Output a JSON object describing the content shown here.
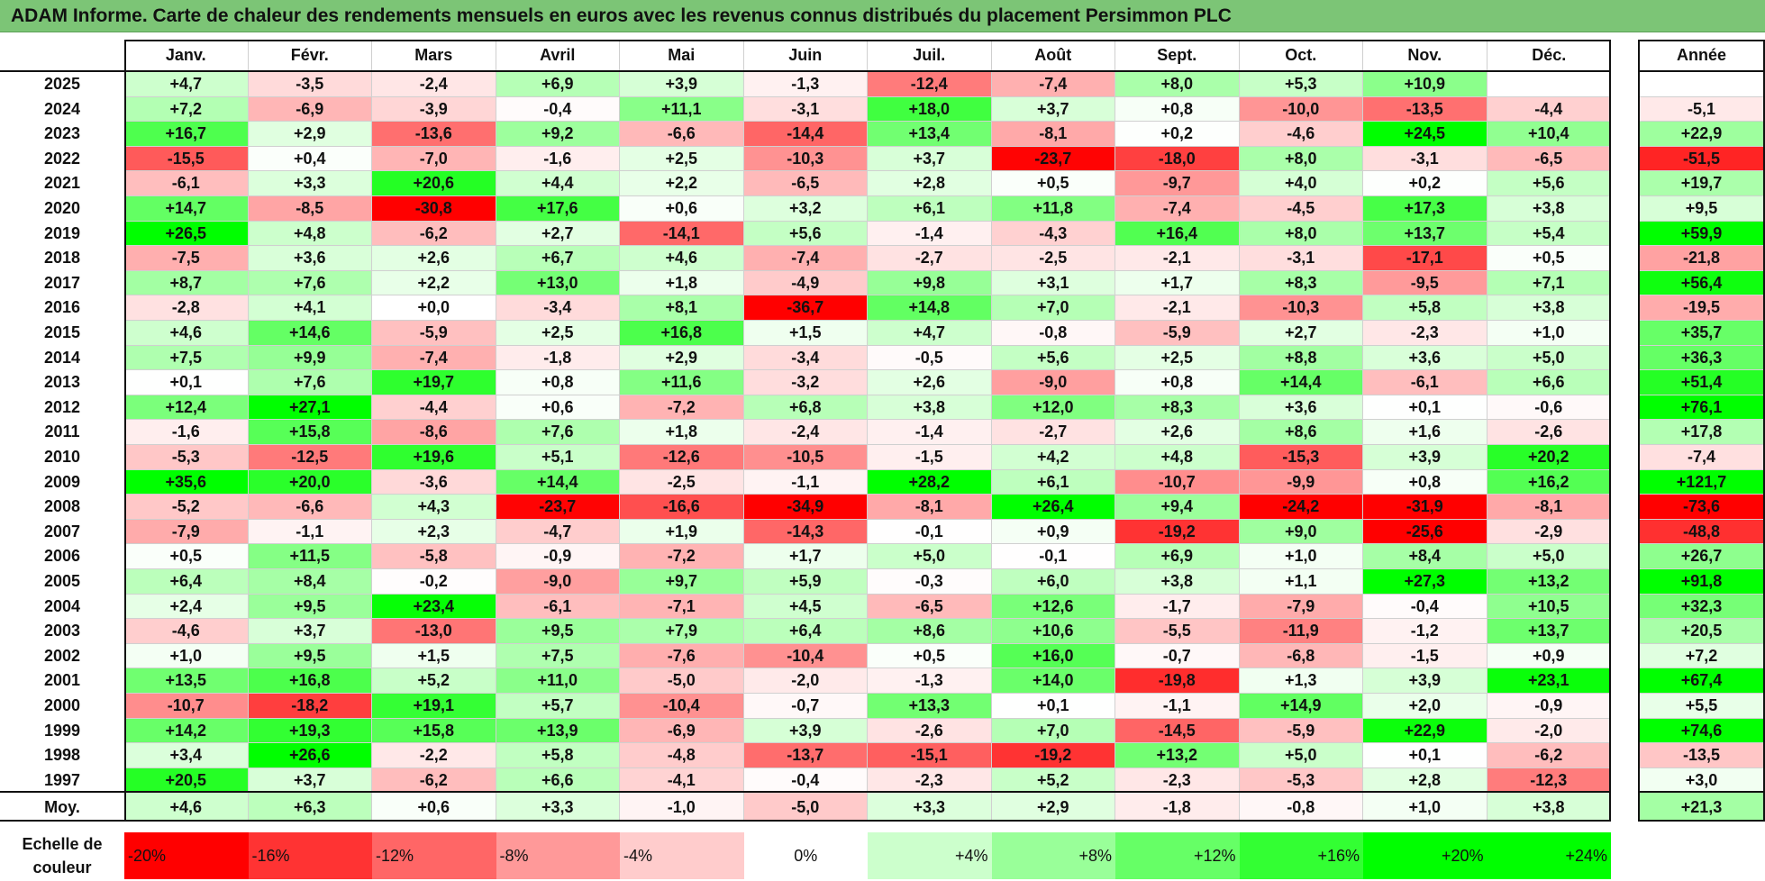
{
  "title": "ADAM Informe. Carte de chaleur des rendements mensuels en euros avec les revenus connus distribués du placement Persimmon PLC",
  "colors": {
    "title_bg": "#7cc576",
    "max_red": "#ff0000",
    "max_green": "#00ff00",
    "neutral": "#ffffff"
  },
  "chart_data": {
    "type": "heatmap",
    "months": [
      "Janv.",
      "Févr.",
      "Mars",
      "Avril",
      "Mai",
      "Juin",
      "Juil.",
      "Août",
      "Sept.",
      "Oct.",
      "Nov.",
      "Déc."
    ],
    "year_col_label": "Année",
    "rows": [
      {
        "year": "2025",
        "values": [
          "+4,7",
          "-3,5",
          "-2,4",
          "+6,9",
          "+3,9",
          "-1,3",
          "-12,4",
          "-7,4",
          "+8,0",
          "+5,3",
          "+10,9",
          ""
        ],
        "annual": ""
      },
      {
        "year": "2024",
        "values": [
          "+7,2",
          "-6,9",
          "-3,9",
          "-0,4",
          "+11,1",
          "-3,1",
          "+18,0",
          "+3,7",
          "+0,8",
          "-10,0",
          "-13,5",
          "-4,4"
        ],
        "annual": "-5,1"
      },
      {
        "year": "2023",
        "values": [
          "+16,7",
          "+2,9",
          "-13,6",
          "+9,2",
          "-6,6",
          "-14,4",
          "+13,4",
          "-8,1",
          "+0,2",
          "-4,6",
          "+24,5",
          "+10,4"
        ],
        "annual": "+22,9"
      },
      {
        "year": "2022",
        "values": [
          "-15,5",
          "+0,4",
          "-7,0",
          "-1,6",
          "+2,5",
          "-10,3",
          "+3,7",
          "-23,7",
          "-18,0",
          "+8,0",
          "-3,1",
          "-6,5"
        ],
        "annual": "-51,5"
      },
      {
        "year": "2021",
        "values": [
          "-6,1",
          "+3,3",
          "+20,6",
          "+4,4",
          "+2,2",
          "-6,5",
          "+2,8",
          "+0,5",
          "-9,7",
          "+4,0",
          "+0,2",
          "+5,6"
        ],
        "annual": "+19,7"
      },
      {
        "year": "2020",
        "values": [
          "+14,7",
          "-8,5",
          "-30,8",
          "+17,6",
          "+0,6",
          "+3,2",
          "+6,1",
          "+11,8",
          "-7,4",
          "-4,5",
          "+17,3",
          "+3,8"
        ],
        "annual": "+9,5"
      },
      {
        "year": "2019",
        "values": [
          "+26,5",
          "+4,8",
          "-6,2",
          "+2,7",
          "-14,1",
          "+5,6",
          "-1,4",
          "-4,3",
          "+16,4",
          "+8,0",
          "+13,7",
          "+5,4"
        ],
        "annual": "+59,9"
      },
      {
        "year": "2018",
        "values": [
          "-7,5",
          "+3,6",
          "+2,6",
          "+6,7",
          "+4,6",
          "-7,4",
          "-2,7",
          "-2,5",
          "-2,1",
          "-3,1",
          "-17,1",
          "+0,5"
        ],
        "annual": "-21,8"
      },
      {
        "year": "2017",
        "values": [
          "+8,7",
          "+7,6",
          "+2,2",
          "+13,0",
          "+1,8",
          "-4,9",
          "+9,8",
          "+3,1",
          "+1,7",
          "+8,3",
          "-9,5",
          "+7,1"
        ],
        "annual": "+56,4"
      },
      {
        "year": "2016",
        "values": [
          "-2,8",
          "+4,1",
          "+0,0",
          "-3,4",
          "+8,1",
          "-36,7",
          "+14,8",
          "+7,0",
          "-2,1",
          "-10,3",
          "+5,8",
          "+3,8"
        ],
        "annual": "-19,5"
      },
      {
        "year": "2015",
        "values": [
          "+4,6",
          "+14,6",
          "-5,9",
          "+2,5",
          "+16,8",
          "+1,5",
          "+4,7",
          "-0,8",
          "-5,9",
          "+2,7",
          "-2,3",
          "+1,0"
        ],
        "annual": "+35,7"
      },
      {
        "year": "2014",
        "values": [
          "+7,5",
          "+9,9",
          "-7,4",
          "-1,8",
          "+2,9",
          "-3,4",
          "-0,5",
          "+5,6",
          "+2,5",
          "+8,8",
          "+3,6",
          "+5,0"
        ],
        "annual": "+36,3"
      },
      {
        "year": "2013",
        "values": [
          "+0,1",
          "+7,6",
          "+19,7",
          "+0,8",
          "+11,6",
          "-3,2",
          "+2,6",
          "-9,0",
          "+0,8",
          "+14,4",
          "-6,1",
          "+6,6"
        ],
        "annual": "+51,4"
      },
      {
        "year": "2012",
        "values": [
          "+12,4",
          "+27,1",
          "-4,4",
          "+0,6",
          "-7,2",
          "+6,8",
          "+3,8",
          "+12,0",
          "+8,3",
          "+3,6",
          "+0,1",
          "-0,6"
        ],
        "annual": "+76,1"
      },
      {
        "year": "2011",
        "values": [
          "-1,6",
          "+15,8",
          "-8,6",
          "+7,6",
          "+1,8",
          "-2,4",
          "-1,4",
          "-2,7",
          "+2,6",
          "+8,6",
          "+1,6",
          "-2,6"
        ],
        "annual": "+17,8"
      },
      {
        "year": "2010",
        "values": [
          "-5,3",
          "-12,5",
          "+19,6",
          "+5,1",
          "-12,6",
          "-10,5",
          "-1,5",
          "+4,2",
          "+4,8",
          "-15,3",
          "+3,9",
          "+20,2"
        ],
        "annual": "-7,4"
      },
      {
        "year": "2009",
        "values": [
          "+35,6",
          "+20,0",
          "-3,6",
          "+14,4",
          "-2,5",
          "-1,1",
          "+28,2",
          "+6,1",
          "-10,7",
          "-9,9",
          "+0,8",
          "+16,2"
        ],
        "annual": "+121,7"
      },
      {
        "year": "2008",
        "values": [
          "-5,2",
          "-6,6",
          "+4,3",
          "-23,7",
          "-16,6",
          "-34,9",
          "-8,1",
          "+26,4",
          "+9,4",
          "-24,2",
          "-31,9",
          "-8,1"
        ],
        "annual": "-73,6"
      },
      {
        "year": "2007",
        "values": [
          "-7,9",
          "-1,1",
          "+2,3",
          "-4,7",
          "+1,9",
          "-14,3",
          "-0,1",
          "+0,9",
          "-19,2",
          "+9,0",
          "-25,6",
          "-2,9"
        ],
        "annual": "-48,8"
      },
      {
        "year": "2006",
        "values": [
          "+0,5",
          "+11,5",
          "-5,8",
          "-0,9",
          "-7,2",
          "+1,7",
          "+5,0",
          "-0,1",
          "+6,9",
          "+1,0",
          "+8,4",
          "+5,0"
        ],
        "annual": "+26,7"
      },
      {
        "year": "2005",
        "values": [
          "+6,4",
          "+8,4",
          "-0,2",
          "-9,0",
          "+9,7",
          "+5,9",
          "-0,3",
          "+6,0",
          "+3,8",
          "+1,1",
          "+27,3",
          "+13,2"
        ],
        "annual": "+91,8"
      },
      {
        "year": "2004",
        "values": [
          "+2,4",
          "+9,5",
          "+23,4",
          "-6,1",
          "-7,1",
          "+4,5",
          "-6,5",
          "+12,6",
          "-1,7",
          "-7,9",
          "-0,4",
          "+10,5"
        ],
        "annual": "+32,3"
      },
      {
        "year": "2003",
        "values": [
          "-4,6",
          "+3,7",
          "-13,0",
          "+9,5",
          "+7,9",
          "+6,4",
          "+8,6",
          "+10,6",
          "-5,5",
          "-11,9",
          "-1,2",
          "+13,7"
        ],
        "annual": "+20,5"
      },
      {
        "year": "2002",
        "values": [
          "+1,0",
          "+9,5",
          "+1,5",
          "+7,5",
          "-7,6",
          "-10,4",
          "+0,5",
          "+16,0",
          "-0,7",
          "-6,8",
          "-1,5",
          "+0,9"
        ],
        "annual": "+7,2"
      },
      {
        "year": "2001",
        "values": [
          "+13,5",
          "+16,8",
          "+5,2",
          "+11,0",
          "-5,0",
          "-2,0",
          "-1,3",
          "+14,0",
          "-19,8",
          "+1,3",
          "+3,9",
          "+23,1"
        ],
        "annual": "+67,4"
      },
      {
        "year": "2000",
        "values": [
          "-10,7",
          "-18,2",
          "+19,1",
          "+5,7",
          "-10,4",
          "-0,7",
          "+13,3",
          "+0,1",
          "-1,1",
          "+14,9",
          "+2,0",
          "-0,9"
        ],
        "annual": "+5,5"
      },
      {
        "year": "1999",
        "values": [
          "+14,2",
          "+19,3",
          "+15,8",
          "+13,9",
          "-6,9",
          "+3,9",
          "-2,6",
          "+7,0",
          "-14,5",
          "-5,9",
          "+22,9",
          "-2,0"
        ],
        "annual": "+74,6"
      },
      {
        "year": "1998",
        "values": [
          "+3,4",
          "+26,6",
          "-2,2",
          "+5,8",
          "-4,8",
          "-13,7",
          "-15,1",
          "-19,2",
          "+13,2",
          "+5,0",
          "+0,1",
          "-6,2"
        ],
        "annual": "-13,5"
      },
      {
        "year": "1997",
        "values": [
          "+20,5",
          "+3,7",
          "-6,2",
          "+6,6",
          "-4,1",
          "-0,4",
          "-2,3",
          "+5,2",
          "-2,3",
          "-5,3",
          "+2,8",
          "-12,3"
        ],
        "annual": "+3,0"
      }
    ],
    "average": {
      "label": "Moy.",
      "values": [
        "+4,6",
        "+6,3",
        "+0,6",
        "+3,3",
        "-1,0",
        "-5,0",
        "+3,3",
        "+2,9",
        "-1,8",
        "-0,8",
        "+1,0",
        "+3,8"
      ],
      "annual": "+21,3"
    },
    "scale": {
      "label_line1": "Echelle de",
      "label_line2": "couleur",
      "steps": [
        {
          "label": "-20%",
          "value": -20
        },
        {
          "label": "-16%",
          "value": -16
        },
        {
          "label": "-12%",
          "value": -12
        },
        {
          "label": "-8%",
          "value": -8
        },
        {
          "label": "-4%",
          "value": -4
        },
        {
          "label": "0%",
          "value": 0
        },
        {
          "label": "+4%",
          "value": 4
        },
        {
          "label": "+8%",
          "value": 8
        },
        {
          "label": "+12%",
          "value": 12
        },
        {
          "label": "+16%",
          "value": 16
        },
        {
          "label": "+20%",
          "value": 20
        },
        {
          "label": "+24%",
          "value": 24
        }
      ]
    }
  }
}
